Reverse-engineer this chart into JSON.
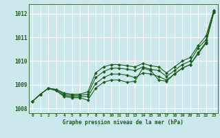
{
  "xlabel": "Graphe pression niveau de la mer (hPa)",
  "background_color": "#cce8ec",
  "grid_color": "#ffffff",
  "line_color": "#1a5c1a",
  "ylim": [
    1007.8,
    1012.4
  ],
  "xlim": [
    -0.5,
    23.5
  ],
  "yticks": [
    1008,
    1009,
    1010,
    1011,
    1012
  ],
  "xticks": [
    0,
    1,
    2,
    3,
    4,
    5,
    6,
    7,
    8,
    9,
    10,
    11,
    12,
    13,
    14,
    15,
    16,
    17,
    18,
    19,
    20,
    21,
    22,
    23
  ],
  "series": [
    [
      1008.3,
      1008.6,
      1008.85,
      1008.75,
      1008.55,
      1008.5,
      1008.5,
      1008.5,
      1009.05,
      1009.3,
      1009.45,
      1009.45,
      1009.4,
      1009.3,
      1009.5,
      1009.45,
      1009.35,
      1009.2,
      1009.45,
      1009.7,
      1009.85,
      1010.35,
      1010.8,
      1012.05
    ],
    [
      1008.3,
      1008.6,
      1008.85,
      1008.8,
      1008.6,
      1008.55,
      1008.55,
      1008.6,
      1009.3,
      1009.55,
      1009.7,
      1009.7,
      1009.65,
      1009.6,
      1009.75,
      1009.65,
      1009.6,
      1009.35,
      1009.6,
      1009.85,
      1010.0,
      1010.55,
      1010.9,
      1012.1
    ],
    [
      1008.3,
      1008.6,
      1008.85,
      1008.75,
      1008.5,
      1008.45,
      1008.45,
      1008.35,
      1008.85,
      1009.1,
      1009.2,
      1009.2,
      1009.1,
      1009.15,
      1009.7,
      1009.6,
      1009.2,
      1009.15,
      1009.45,
      1009.7,
      1009.85,
      1010.3,
      1010.75,
      1012.05
    ],
    [
      1008.3,
      1008.6,
      1008.85,
      1008.8,
      1008.65,
      1008.6,
      1008.6,
      1008.7,
      1009.5,
      1009.75,
      1009.85,
      1009.85,
      1009.8,
      1009.75,
      1009.9,
      1009.8,
      1009.75,
      1009.5,
      1009.75,
      1010.0,
      1010.15,
      1010.65,
      1011.05,
      1012.15
    ]
  ]
}
